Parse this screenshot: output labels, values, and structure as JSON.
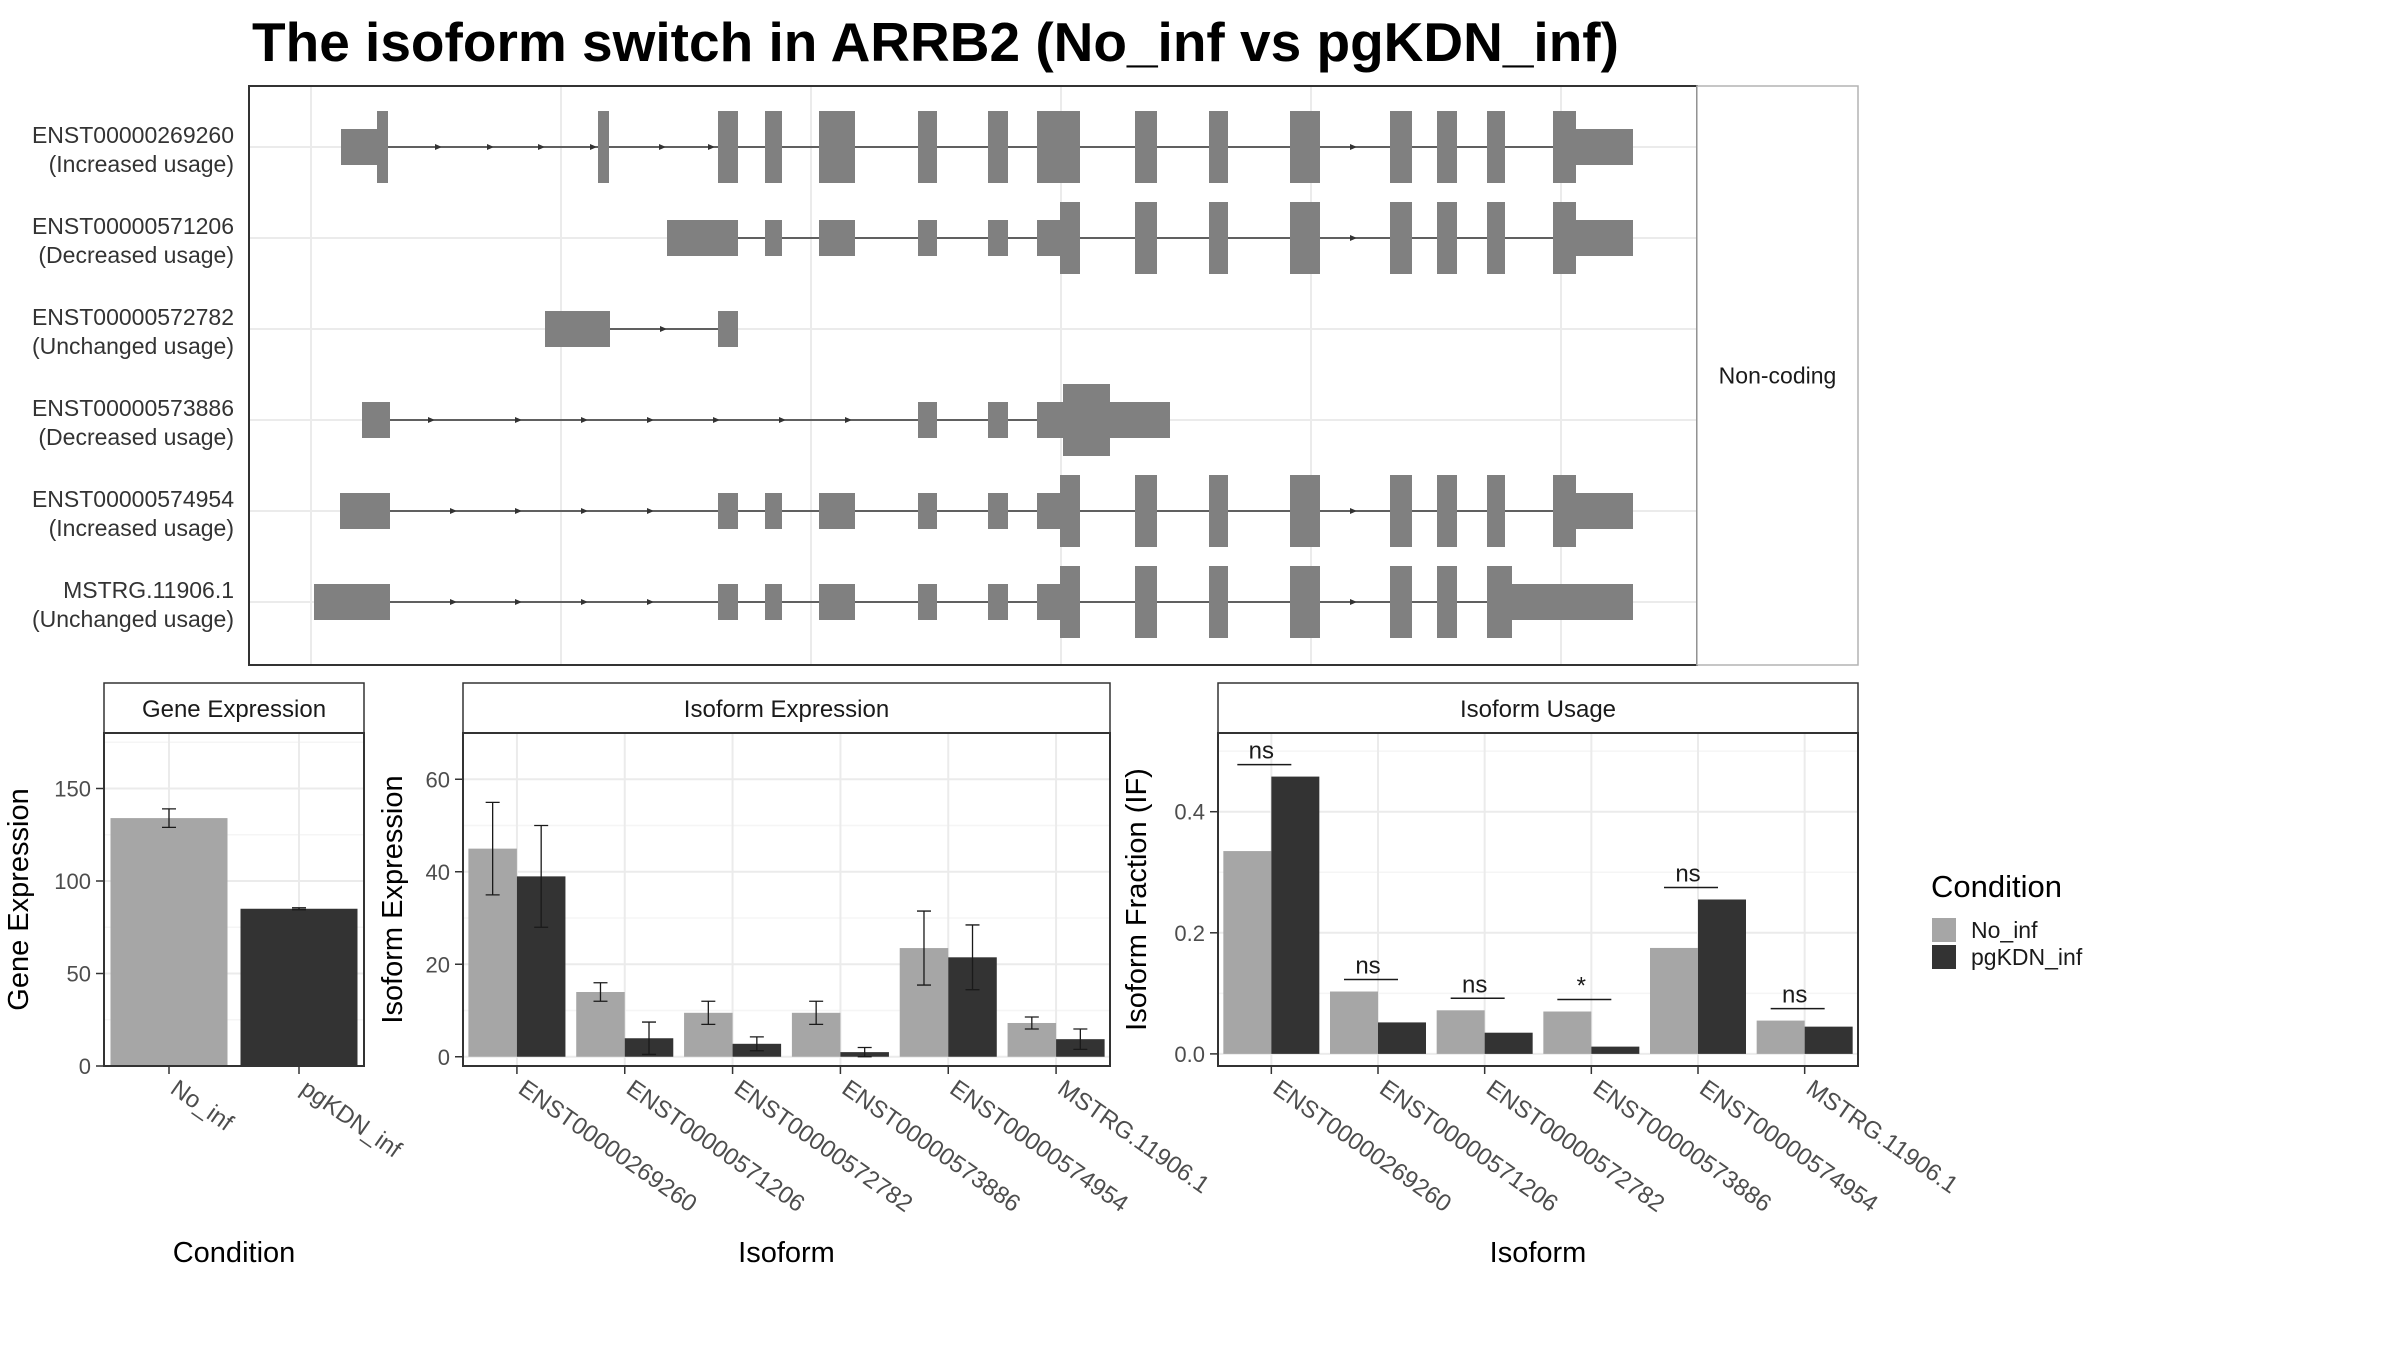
{
  "title": "The isoform switch in ARRB2 (No_inf vs pgKDN_inf)",
  "colors": {
    "No_inf": "#a6a6a6",
    "pgKDN_inf": "#333333",
    "exon": "#808080",
    "grid": "#ebebeb"
  },
  "legend": {
    "title": "Condition",
    "items": [
      "No_inf",
      "pgKDN_inf"
    ]
  },
  "structure": {
    "strip_label": "Non-coding",
    "isoforms": [
      {
        "id": "ENST00000269260",
        "status": "(Increased usage)"
      },
      {
        "id": "ENST00000571206",
        "status": "(Decreased usage)"
      },
      {
        "id": "ENST00000572782",
        "status": "(Unchanged usage)"
      },
      {
        "id": "ENST00000573886",
        "status": "(Decreased usage)"
      },
      {
        "id": "ENST00000574954",
        "status": "(Increased usage)"
      },
      {
        "id": "MSTRG.11906.1",
        "status": "(Unchanged usage)"
      }
    ]
  },
  "chart_data": [
    {
      "type": "bar",
      "panel": "Gene Expression",
      "categories": [
        "No_inf",
        "pgKDN_inf"
      ],
      "values": [
        134,
        85
      ],
      "errors": [
        5,
        0.5
      ],
      "xlabel": "Condition",
      "ylabel": "Gene Expression",
      "ylim": [
        0,
        180
      ],
      "yticks": [
        0,
        50,
        100,
        150
      ],
      "grid": true
    },
    {
      "type": "bar",
      "panel": "Isoform Expression",
      "categories": [
        "ENST00000269260",
        "ENST00000571206",
        "ENST00000572782",
        "ENST00000573886",
        "ENST00000574954",
        "MSTRG.11906.1"
      ],
      "series": [
        {
          "name": "No_inf",
          "values": [
            45,
            14,
            9.5,
            9.5,
            23.5,
            7.3
          ],
          "errors": [
            10,
            2,
            2.5,
            2.5,
            8,
            1.3
          ]
        },
        {
          "name": "pgKDN_inf",
          "values": [
            39,
            4,
            2.8,
            1,
            21.5,
            3.8
          ],
          "errors": [
            11,
            3.5,
            1.5,
            1,
            7,
            2.2
          ]
        }
      ],
      "xlabel": "Isoform",
      "ylabel": "Isoform Expression",
      "ylim": [
        -2,
        70
      ],
      "yticks": [
        0,
        20,
        40,
        60
      ],
      "grid": true
    },
    {
      "type": "bar",
      "panel": "Isoform Usage",
      "categories": [
        "ENST00000269260",
        "ENST00000571206",
        "ENST00000572782",
        "ENST00000573886",
        "ENST00000574954",
        "MSTRG.11906.1"
      ],
      "series": [
        {
          "name": "No_inf",
          "values": [
            0.335,
            0.103,
            0.072,
            0.07,
            0.175,
            0.055
          ]
        },
        {
          "name": "pgKDN_inf",
          "values": [
            0.458,
            0.052,
            0.035,
            0.012,
            0.255,
            0.045
          ]
        }
      ],
      "significance": [
        "ns",
        "ns",
        "ns",
        "*",
        "ns",
        "ns"
      ],
      "xlabel": "Isoform",
      "ylabel": "Isoform Fraction (IF)",
      "ylim": [
        -0.02,
        0.53
      ],
      "yticks": [
        0.0,
        0.2,
        0.4
      ],
      "grid": true
    }
  ]
}
